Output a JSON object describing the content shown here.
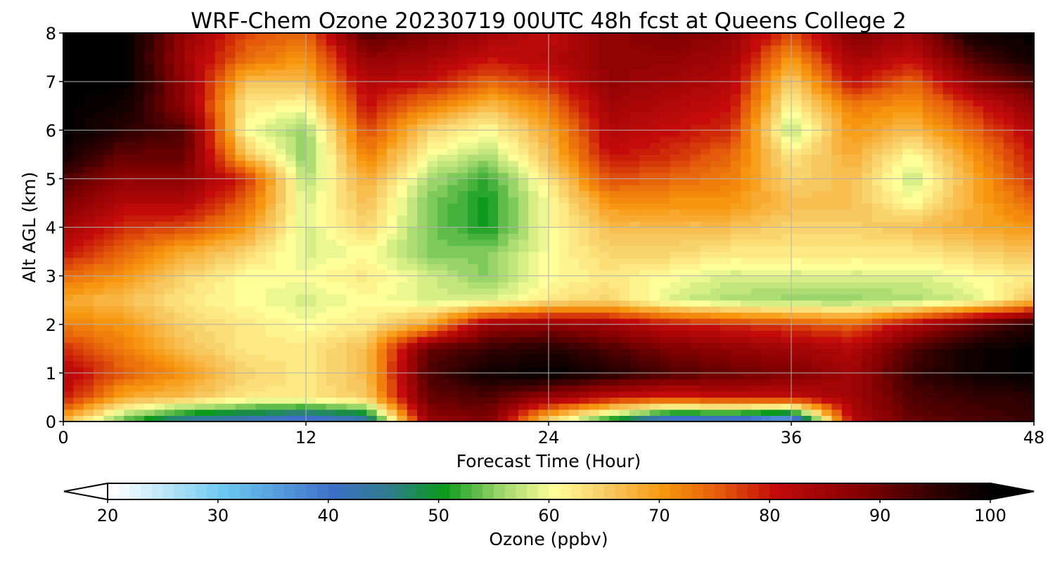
{
  "chart_data": {
    "type": "heatmap",
    "title": "WRF-Chem Ozone  20230719 00UTC 48h fcst at Queens College 2",
    "xlabel": "Forecast Time (Hour)",
    "ylabel": "Alt AGL (km)",
    "xlim": [
      0,
      48
    ],
    "ylim": [
      0,
      8
    ],
    "xticks": [
      0,
      12,
      24,
      36,
      48
    ],
    "xtick_labels": [
      "0",
      "12",
      "24",
      "36",
      "48"
    ],
    "yticks": [
      0,
      1,
      2,
      3,
      4,
      5,
      6,
      7,
      8
    ],
    "ytick_labels": [
      "0",
      "1",
      "2",
      "3",
      "4",
      "5",
      "6",
      "7",
      "8"
    ],
    "grid": true,
    "x": [
      0,
      3,
      6,
      9,
      12,
      15,
      18,
      21,
      24,
      27,
      30,
      33,
      36,
      39,
      42,
      45,
      48
    ],
    "y": [
      0,
      0.5,
      1,
      1.5,
      2,
      2.5,
      3,
      3.5,
      4,
      4.5,
      5,
      5.5,
      6,
      6.5,
      7,
      7.5,
      8
    ],
    "z": [
      [
        66,
        52,
        42,
        40,
        36,
        40,
        85,
        88,
        62,
        48,
        35,
        35,
        30,
        82,
        90,
        92,
        94
      ],
      [
        80,
        68,
        66,
        62,
        62,
        65,
        90,
        92,
        85,
        80,
        78,
        80,
        80,
        84,
        92,
        94,
        95
      ],
      [
        82,
        75,
        70,
        64,
        62,
        66,
        92,
        98,
        100,
        96,
        92,
        90,
        88,
        84,
        94,
        98,
        100
      ],
      [
        78,
        72,
        66,
        62,
        62,
        66,
        90,
        94,
        96,
        92,
        88,
        86,
        84,
        82,
        92,
        98,
        100
      ],
      [
        72,
        70,
        64,
        62,
        60,
        62,
        68,
        85,
        86,
        84,
        80,
        78,
        76,
        74,
        82,
        90,
        96
      ],
      [
        68,
        66,
        62,
        60,
        58,
        60,
        58,
        58,
        62,
        64,
        58,
        56,
        55,
        55,
        56,
        58,
        66
      ],
      [
        74,
        70,
        64,
        60,
        60,
        62,
        58,
        54,
        60,
        62,
        60,
        58,
        58,
        58,
        58,
        60,
        62
      ],
      [
        80,
        74,
        68,
        64,
        58,
        60,
        54,
        54,
        60,
        64,
        64,
        62,
        62,
        62,
        62,
        64,
        66
      ],
      [
        84,
        78,
        76,
        70,
        58,
        64,
        54,
        50,
        60,
        66,
        66,
        66,
        64,
        64,
        66,
        68,
        70
      ],
      [
        88,
        82,
        82,
        74,
        58,
        66,
        54,
        50,
        60,
        70,
        70,
        70,
        66,
        66,
        60,
        68,
        74
      ],
      [
        92,
        86,
        86,
        78,
        56,
        68,
        56,
        51,
        62,
        76,
        74,
        72,
        64,
        66,
        57,
        68,
        78
      ],
      [
        98,
        90,
        90,
        66,
        54,
        72,
        60,
        56,
        66,
        80,
        78,
        74,
        62,
        68,
        60,
        70,
        80
      ],
      [
        100,
        95,
        92,
        60,
        55,
        76,
        64,
        60,
        68,
        82,
        80,
        78,
        56,
        70,
        66,
        74,
        82
      ],
      [
        100,
        98,
        86,
        62,
        60,
        80,
        72,
        66,
        72,
        84,
        82,
        80,
        60,
        72,
        70,
        78,
        86
      ],
      [
        100,
        100,
        86,
        66,
        66,
        82,
        80,
        74,
        78,
        86,
        84,
        82,
        64,
        80,
        74,
        86,
        92
      ],
      [
        100,
        100,
        84,
        74,
        70,
        86,
        84,
        80,
        82,
        86,
        86,
        84,
        70,
        84,
        80,
        92,
        98
      ],
      [
        100,
        100,
        86,
        76,
        74,
        92,
        88,
        84,
        80,
        86,
        88,
        86,
        76,
        88,
        84,
        98,
        100
      ]
    ],
    "colorbar": {
      "label": "Ozone  (ppbv)",
      "min": 20,
      "max": 100,
      "ticks": [
        20,
        30,
        40,
        50,
        60,
        70,
        80,
        90,
        100
      ],
      "tick_labels": [
        "20",
        "30",
        "40",
        "50",
        "60",
        "70",
        "80",
        "90",
        "100"
      ],
      "extend": "both",
      "color_stops": [
        {
          "value": 20,
          "color": "#ffffff"
        },
        {
          "value": 30,
          "color": "#6cc8f0"
        },
        {
          "value": 40,
          "color": "#3e6fc8"
        },
        {
          "value": 45,
          "color": "#2f7d8c"
        },
        {
          "value": 50,
          "color": "#0b9a1c"
        },
        {
          "value": 55,
          "color": "#9ad56a"
        },
        {
          "value": 60,
          "color": "#ffff9a"
        },
        {
          "value": 65,
          "color": "#f8c860"
        },
        {
          "value": 70,
          "color": "#f7960e"
        },
        {
          "value": 75,
          "color": "#e45a0a"
        },
        {
          "value": 80,
          "color": "#c40a0a"
        },
        {
          "value": 88,
          "color": "#800000"
        },
        {
          "value": 95,
          "color": "#2a0000"
        },
        {
          "value": 100,
          "color": "#000000"
        }
      ]
    }
  }
}
